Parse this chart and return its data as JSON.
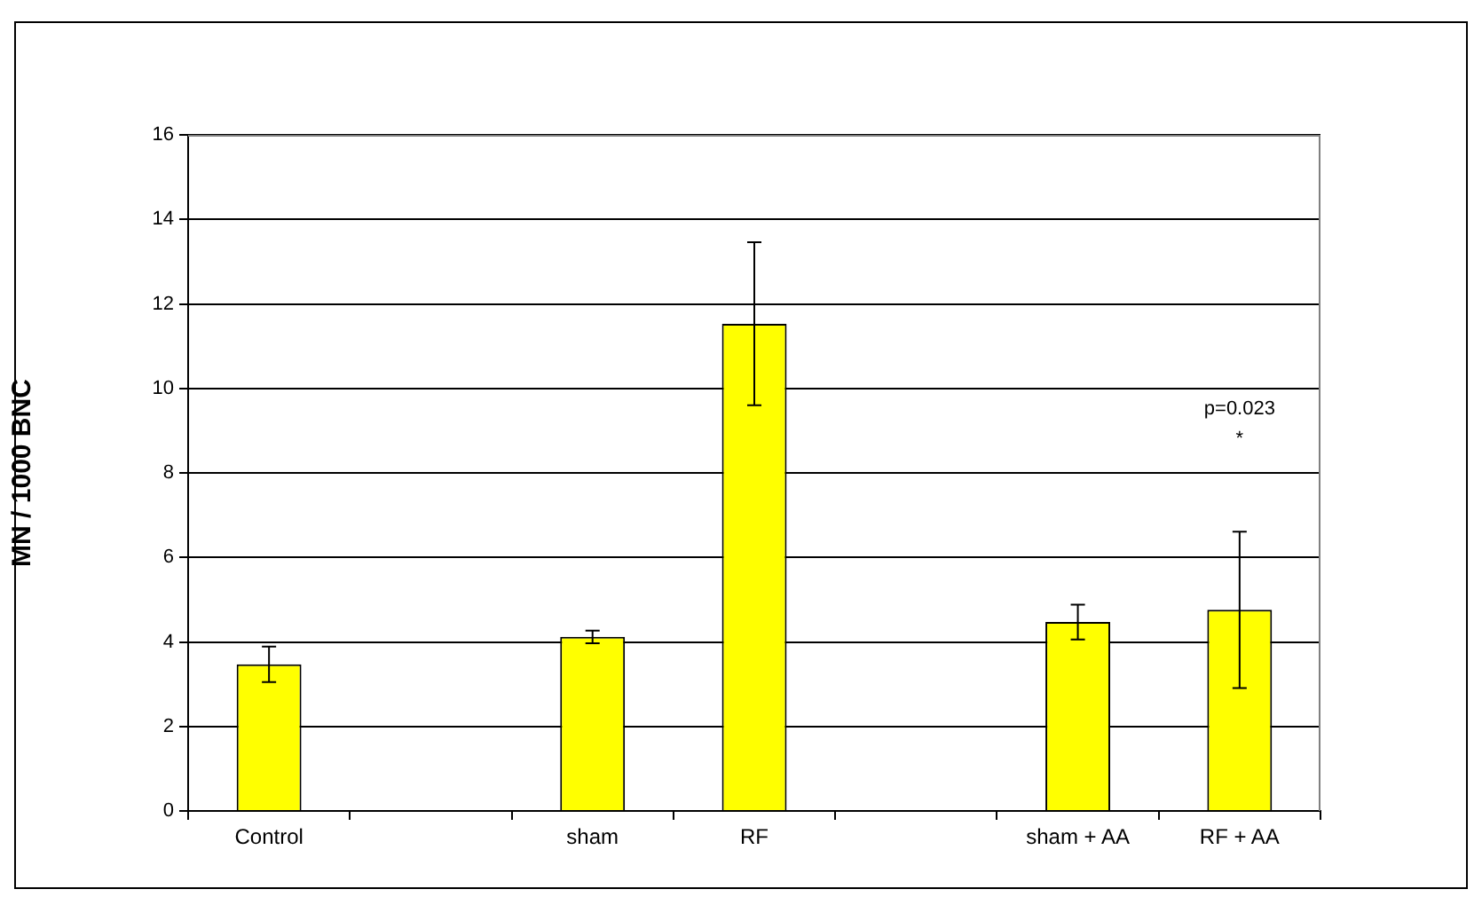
{
  "chart_data": {
    "type": "bar",
    "ylabel": "MN / 1000 BNC",
    "categories": [
      "Control",
      null,
      "sham",
      "RF",
      null,
      "sham + AA",
      "RF + AA"
    ],
    "values": [
      3.47,
      null,
      4.12,
      11.53,
      null,
      4.47,
      4.76
    ],
    "errors": [
      0.42,
      null,
      0.15,
      1.93,
      null,
      0.41,
      1.85
    ],
    "color": "#ffff00",
    "ylim": [
      0,
      16
    ],
    "yticks": [
      0,
      2,
      4,
      6,
      8,
      10,
      12,
      14,
      16
    ],
    "grid": "y",
    "legend": false,
    "annotations": [
      "p=0.023",
      "*"
    ]
  }
}
